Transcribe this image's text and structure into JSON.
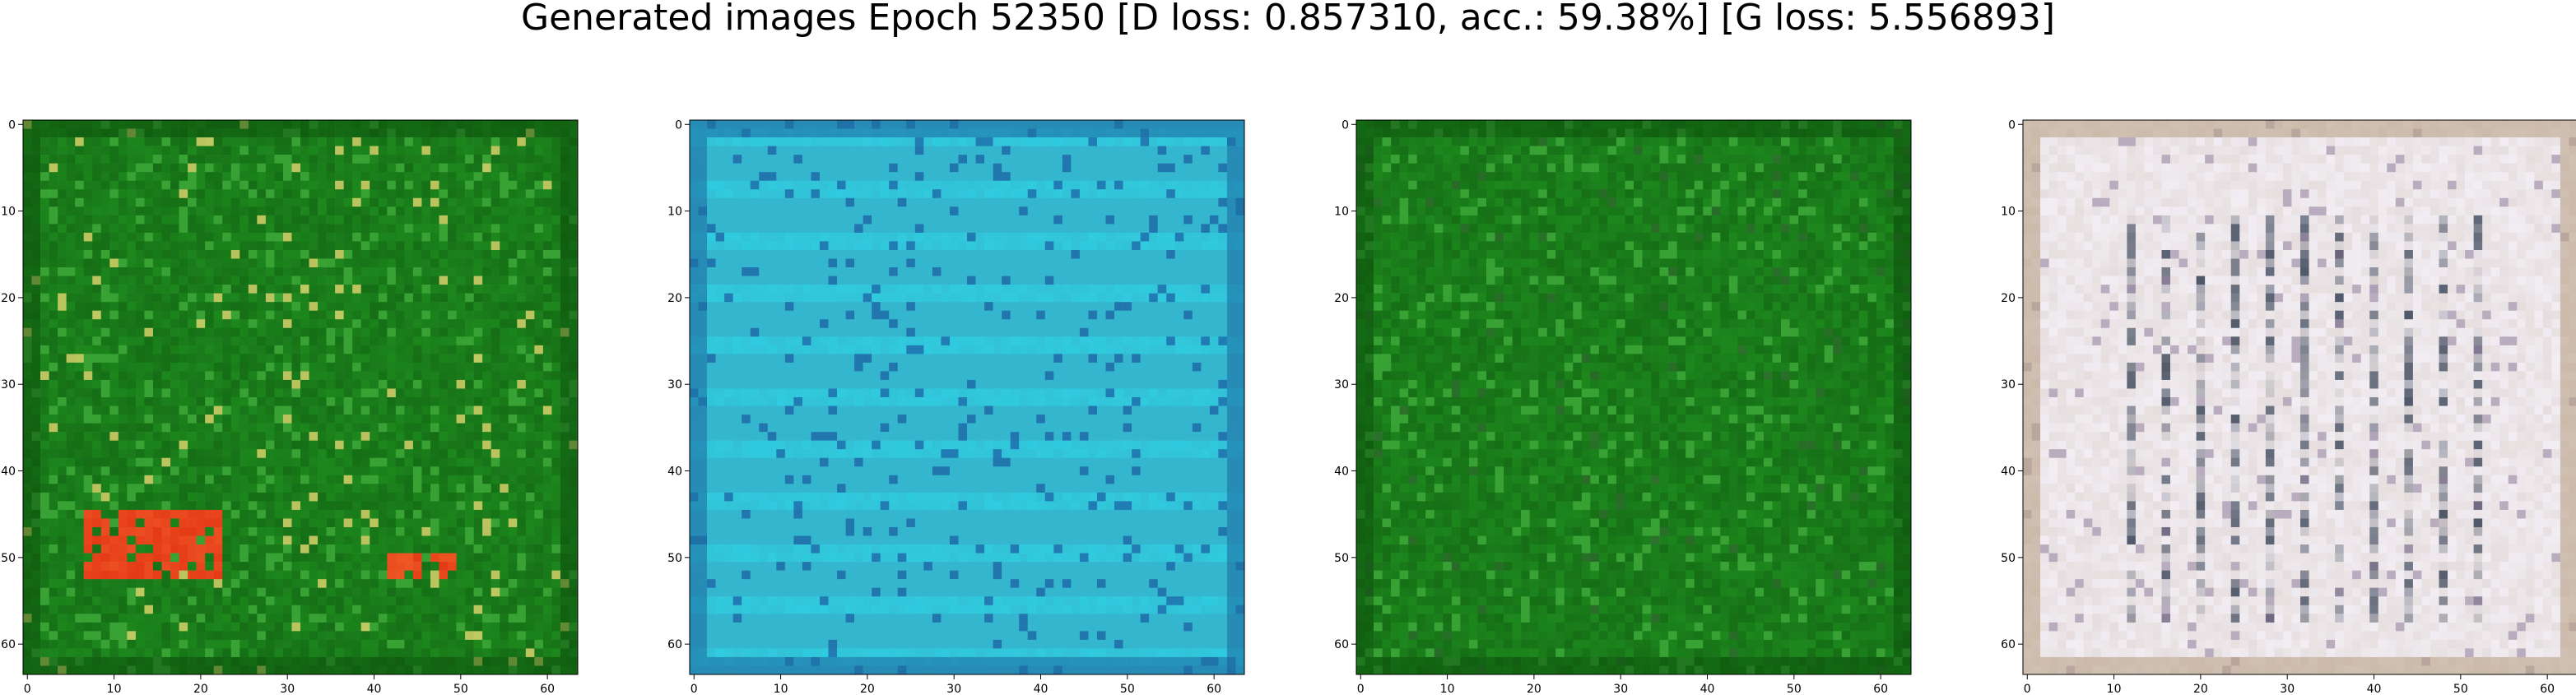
{
  "figure": {
    "title": "Generated images Epoch 52350 [D loss: 0.857310, acc.: 59.38%] [G loss: 5.556893]"
  },
  "panels": [
    {
      "id": "panel-1",
      "palette": {
        "base": "#1e8a1e",
        "dark": "#0b4d0b",
        "light": "#3fa83a",
        "accent1": "#e43a16",
        "accent2": "#d7d06a"
      },
      "x_ticks": [
        "0",
        "10",
        "20",
        "30",
        "40",
        "50",
        "60"
      ],
      "y_ticks": [
        "0",
        "10",
        "20",
        "30",
        "40",
        "50",
        "60"
      ]
    },
    {
      "id": "panel-2",
      "palette": {
        "base": "#34b4cc",
        "dark": "#1d6fa4",
        "light": "#2fd3e5",
        "accent1": "#1a5aa0",
        "accent2": "#5de1ee"
      },
      "x_ticks": [
        "0",
        "10",
        "20",
        "30",
        "40",
        "50",
        "60"
      ],
      "y_ticks": [
        "0",
        "10",
        "20",
        "30",
        "40",
        "50",
        "60"
      ]
    },
    {
      "id": "panel-3",
      "palette": {
        "base": "#1e8a1e",
        "dark": "#0b4d0b",
        "light": "#3fa83a",
        "accent1": "#e0df78",
        "accent2": "#2b6a2b"
      },
      "x_ticks": [
        "0",
        "10",
        "20",
        "30",
        "40",
        "50",
        "60"
      ],
      "y_ticks": [
        "0",
        "10",
        "20",
        "30",
        "40",
        "50",
        "60"
      ]
    },
    {
      "id": "panel-4",
      "palette": {
        "base": "#e6dede",
        "dark": "#1c2a40",
        "light": "#f2eef4",
        "accent1": "#b9a287",
        "accent2": "#7f6a8a"
      },
      "x_ticks": [
        "0",
        "10",
        "20",
        "30",
        "40",
        "50",
        "60"
      ],
      "y_ticks": [
        "0",
        "10",
        "20",
        "30",
        "40",
        "50",
        "60"
      ]
    }
  ]
}
